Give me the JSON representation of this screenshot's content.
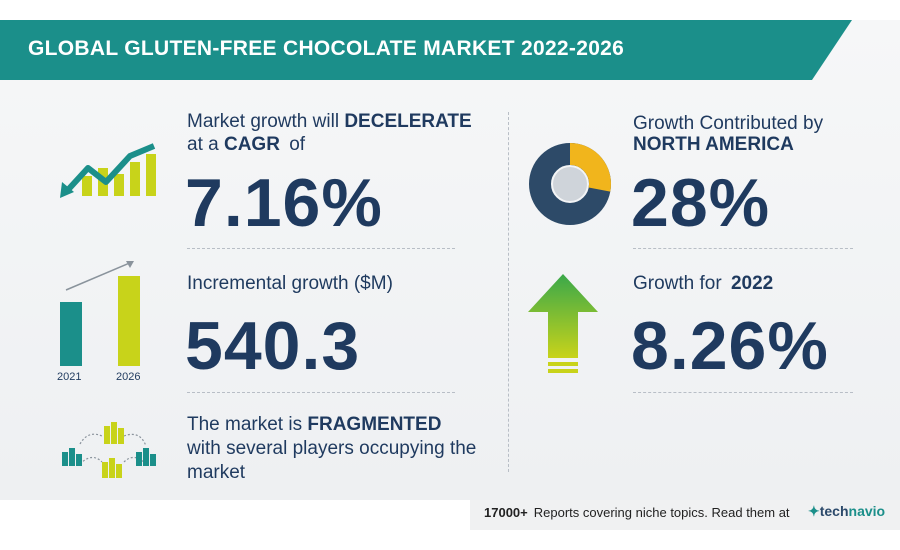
{
  "banner": {
    "title": "GLOBAL GLUTEN-FREE CHOCOLATE MARKET 2022-2026"
  },
  "cagr": {
    "line1_prefix": "Market growth will",
    "line1_bold": "DECELERATE",
    "line2_prefix": "at a",
    "line2_bold": "CAGR",
    "line2_suffix": "of",
    "value": "7.16%"
  },
  "incremental": {
    "label": "Incremental growth ($M)",
    "value": "540.3",
    "years": [
      "2021",
      "2026"
    ]
  },
  "fragmented": {
    "line1_prefix": "The market is",
    "line1_bold": "FRAGMENTED",
    "line2": "with several players occupying the",
    "line3": "market"
  },
  "region": {
    "line1": "Growth Contributed by",
    "line2_bold": "NORTH AMERICA",
    "value": "28%",
    "donut_share": 0.28
  },
  "yoy": {
    "label_prefix": "Growth for",
    "label_bold": "2022",
    "value": "8.26%"
  },
  "footer": {
    "count": "17000+",
    "text": "Reports covering niche topics. Read them at",
    "brand_a": "tech",
    "brand_b": "navio"
  },
  "colors": {
    "teal": "#1b8f8a",
    "lime": "#c8d31a",
    "navy": "#1f3a5f",
    "gold": "#f1b51c",
    "green": "#3aa84a"
  }
}
